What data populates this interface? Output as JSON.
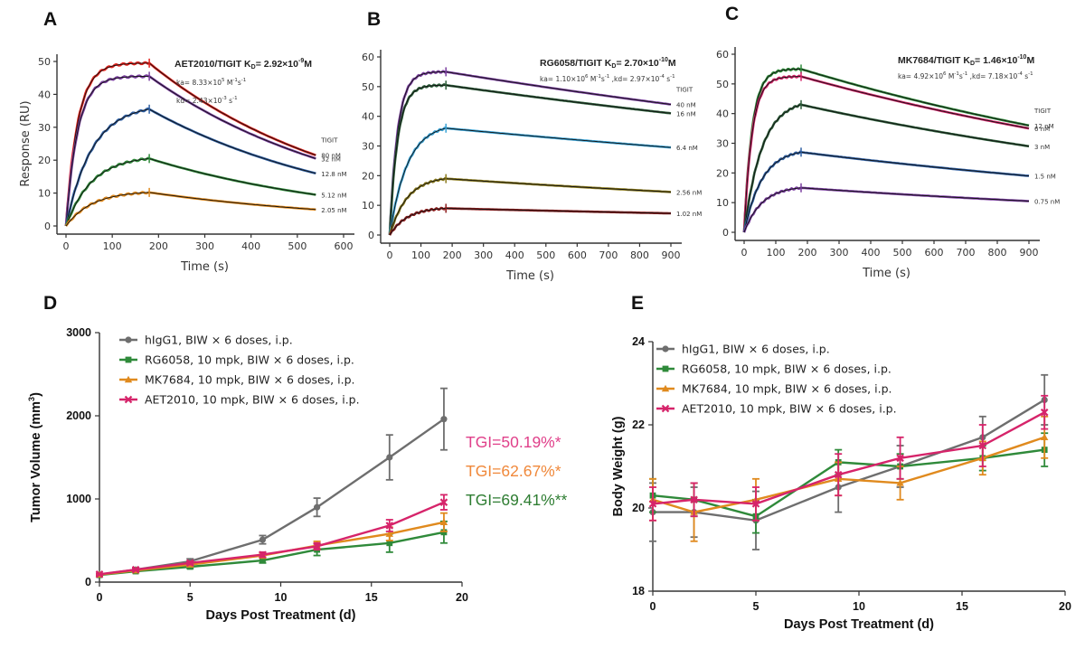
{
  "panels": {
    "A": "A",
    "B": "B",
    "C": "C",
    "D": "D",
    "E": "E"
  },
  "colors": {
    "red": "#e3221c",
    "purple": "#7b3fa0",
    "blue": "#2e5fa3",
    "green": "#2f8a3a",
    "orange": "#e08a1e",
    "darkgreen": "#2d5e3a",
    "cyan": "#3aa3d6",
    "olive": "#8a7a1c",
    "darkred": "#8e1e1e",
    "magenta": "#d6246a",
    "gray": "#6e6e6e",
    "tgi_green": "#2e7d32",
    "tgi_orange": "#f0883a",
    "tgi_pink": "#e0408a"
  },
  "chart_data": [
    {
      "type": "line",
      "panel": "A",
      "title": "AET2010/TIGIT",
      "kd_label": "K",
      "kd_sub": "D",
      "kd_value": "= 2.92×10",
      "kd_exp": "-9",
      "kd_unit": "M",
      "ka_text": "ka= 8.33×10",
      "ka_exp": "5",
      "ka_unit": " M",
      "ka_unit_exp": "-1",
      "ka_unit2": "s",
      "ka_unit2_exp": "-1",
      "kdis_text": "kd= 2.43×10",
      "kdis_exp": "-3",
      "kdis_unit": " s",
      "kdis_unit_exp": "-1",
      "analyte": "TIGIT",
      "xlabel": "Time (s)",
      "ylabel": "Response (RU)",
      "xlim": [
        -10,
        620
      ],
      "ylim": [
        -3,
        53
      ],
      "xticks": [
        "0",
        "100",
        "200",
        "300",
        "400",
        "500",
        "600"
      ],
      "yticks": [
        "0",
        "10",
        "20",
        "30",
        "40",
        "50"
      ],
      "assoc_end": 180,
      "end_time": 540,
      "series": [
        {
          "name": "80 nM",
          "color_key": "red",
          "plateau": 50,
          "at_end": 49.5,
          "rate": 0.06,
          "final": 21.5
        },
        {
          "name": "32 nM",
          "color_key": "purple",
          "plateau": 48,
          "at_end": 45.5,
          "rate": 0.016,
          "final": 20.5
        },
        {
          "name": "12.8 nM",
          "color_key": "blue",
          "plateau": 40,
          "at_end": 35.5,
          "rate": 0.012,
          "final": 16
        },
        {
          "name": "5.12 nM",
          "color_key": "green",
          "plateau": 25,
          "at_end": 20.5,
          "rate": 0.0095,
          "final": 9.5
        },
        {
          "name": "2.05 nM",
          "color_key": "orange",
          "plateau": 12,
          "at_end": 10.2,
          "rate": 0.0105,
          "final": 5
        }
      ]
    },
    {
      "type": "line",
      "panel": "B",
      "title": "RG6058/TIGIT",
      "kd_label": "K",
      "kd_sub": "D",
      "kd_value": "= 2.70×10",
      "kd_exp": "-10",
      "kd_unit": "M",
      "ka_text": "ka= 1.10×10",
      "ka_exp": "6",
      "ka_unit": " M",
      "ka_unit_exp": "-1",
      "ka_unit2": "s",
      "ka_unit2_exp": "-1",
      "kdis_text": ",kd= 2.97×10",
      "kdis_exp": "-4",
      "kdis_unit": " s",
      "kdis_unit_exp": "-1",
      "analyte": "TIGIT",
      "xlabel": "Time (s)",
      "ylabel": "",
      "xlim": [
        -10,
        950
      ],
      "ylim": [
        -2,
        62
      ],
      "xticks": [
        "0",
        "100",
        "200",
        "300",
        "400",
        "500",
        "600",
        "700",
        "800",
        "900"
      ],
      "yticks": [
        "0",
        "10",
        "20",
        "30",
        "40",
        "50",
        "60"
      ],
      "assoc_end": 180,
      "end_time": 900,
      "series": [
        {
          "name": "40 nM",
          "color_key": "purple",
          "plateau": 55,
          "at_end": 55,
          "rate": 0.05,
          "final": 44
        },
        {
          "name": "16 nM",
          "color_key": "darkgreen",
          "plateau": 52,
          "at_end": 50.5,
          "rate": 0.022,
          "final": 41
        },
        {
          "name": "6.4 nM",
          "color_key": "cyan",
          "plateau": 38,
          "at_end": 36,
          "rate": 0.016,
          "final": 29.5
        },
        {
          "name": "2.56 nM",
          "color_key": "olive",
          "plateau": 20,
          "at_end": 19,
          "rate": 0.016,
          "final": 14.5
        },
        {
          "name": "1.02 nM",
          "color_key": "darkred",
          "plateau": 10,
          "at_end": 9,
          "rate": 0.016,
          "final": 7.3
        }
      ]
    },
    {
      "type": "line",
      "panel": "C",
      "title": "MK7684/TIGIT",
      "kd_label": "K",
      "kd_sub": "D",
      "kd_value": "= 1.46×10",
      "kd_exp": "-10",
      "kd_unit": "M",
      "ka_text": "ka= 4.92×10",
      "ka_exp": "6",
      "ka_unit": " M",
      "ka_unit_exp": "-1",
      "ka_unit2": "s",
      "ka_unit2_exp": "-1",
      "kdis_text": ",kd= 7.18×10",
      "kdis_exp": "-4",
      "kdis_unit": " s",
      "kdis_unit_exp": "-1",
      "analyte": "TIGIT",
      "xlabel": "Time (s)",
      "ylabel": "",
      "xlim": [
        -10,
        950
      ],
      "ylim": [
        -2,
        62
      ],
      "xticks": [
        "0",
        "100",
        "200",
        "300",
        "400",
        "500",
        "600",
        "700",
        "800",
        "900"
      ],
      "yticks": [
        "0",
        "10",
        "20",
        "30",
        "40",
        "50",
        "60"
      ],
      "assoc_end": 180,
      "end_time": 900,
      "series": [
        {
          "name": "12 nM",
          "color_key": "green",
          "plateau": 55,
          "at_end": 55,
          "rate": 0.08,
          "final": 36
        },
        {
          "name": "6 nM",
          "color_key": "magenta",
          "plateau": 53,
          "at_end": 52.5,
          "rate": 0.04,
          "final": 35
        },
        {
          "name": "3 nM",
          "color_key": "darkgreen",
          "plateau": 45,
          "at_end": 43,
          "rate": 0.02,
          "final": 29
        },
        {
          "name": "1.5 nM",
          "color_key": "blue",
          "plateau": 28,
          "at_end": 27,
          "rate": 0.025,
          "final": 19
        },
        {
          "name": "0.75 nM",
          "color_key": "purple",
          "plateau": 15.5,
          "at_end": 15,
          "rate": 0.025,
          "final": 10.5
        }
      ]
    },
    {
      "type": "line",
      "panel": "D",
      "xlabel": "Days Post Treatment (d)",
      "ylabel": "Tumor Volume (mm",
      "ylabel_sup": "3",
      "ylabel_end": ")",
      "xlim": [
        0,
        20
      ],
      "ylim": [
        0,
        3000
      ],
      "xticks": [
        "0",
        "5",
        "10",
        "15",
        "20"
      ],
      "yticks": [
        "0",
        "1000",
        "2000",
        "3000"
      ],
      "legend": "top-left",
      "x": [
        0,
        2,
        5,
        9,
        12,
        16,
        19
      ],
      "series": [
        {
          "name": "hIgG1, BIW × 6 doses, i.p.",
          "color_key": "gray",
          "marker": "circle",
          "values": [
            90,
            150,
            250,
            510,
            900,
            1500,
            1960
          ],
          "errors": [
            15,
            20,
            30,
            50,
            110,
            270,
            370
          ]
        },
        {
          "name": "RG6058, 10 mpk, BIW × 6 doses, i.p.",
          "color_key": "green",
          "marker": "square",
          "values": [
            85,
            130,
            185,
            260,
            390,
            470,
            600
          ],
          "errors": [
            10,
            15,
            20,
            30,
            70,
            110,
            130
          ]
        },
        {
          "name": "MK7684, 10 mpk, BIW × 6 doses, i.p.",
          "color_key": "orange",
          "marker": "triangle",
          "values": [
            90,
            140,
            210,
            320,
            440,
            580,
            720
          ],
          "errors": [
            10,
            15,
            20,
            30,
            50,
            80,
            110
          ]
        },
        {
          "name": "AET2010, 10 mpk, BIW × 6 doses, i.p.",
          "color_key": "magenta",
          "marker": "cross",
          "values": [
            95,
            150,
            230,
            330,
            430,
            680,
            960
          ],
          "errors": [
            10,
            15,
            20,
            30,
            40,
            70,
            90
          ]
        }
      ],
      "annotations": [
        {
          "text": "TGI=50.19%*",
          "color_key": "tgi_pink"
        },
        {
          "text": "TGI=62.67%*",
          "color_key": "tgi_orange"
        },
        {
          "text": "TGI=69.41%**",
          "color_key": "tgi_green"
        }
      ]
    },
    {
      "type": "line",
      "panel": "E",
      "xlabel": "Days Post Treatment (d)",
      "ylabel": "Body Weight (g)",
      "xlim": [
        0,
        20
      ],
      "ylim": [
        18,
        24
      ],
      "xticks": [
        "0",
        "5",
        "10",
        "15",
        "20"
      ],
      "yticks": [
        "18",
        "20",
        "22",
        "24"
      ],
      "legend": "top-left",
      "x": [
        0,
        2,
        5,
        9,
        12,
        16,
        19
      ],
      "series": [
        {
          "name": "hIgG1, BIW × 6 doses, i.p.",
          "color_key": "gray",
          "marker": "circle",
          "values": [
            19.9,
            19.9,
            19.7,
            20.5,
            21.0,
            21.7,
            22.6
          ],
          "errors": [
            0.7,
            0.6,
            0.7,
            0.6,
            0.5,
            0.5,
            0.6
          ]
        },
        {
          "name": "RG6058, 10 mpk, BIW × 6 doses, i.p.",
          "color_key": "green",
          "marker": "square",
          "values": [
            20.3,
            20.2,
            19.8,
            21.1,
            21.0,
            21.2,
            21.4
          ],
          "errors": [
            0.4,
            0.4,
            0.4,
            0.3,
            0.3,
            0.3,
            0.4
          ]
        },
        {
          "name": "MK7684, 10 mpk, BIW × 6 doses, i.p.",
          "color_key": "orange",
          "marker": "triangle",
          "values": [
            20.2,
            19.9,
            20.2,
            20.7,
            20.6,
            21.2,
            21.7
          ],
          "errors": [
            0.5,
            0.7,
            0.5,
            0.4,
            0.4,
            0.4,
            0.5
          ]
        },
        {
          "name": "AET2010, 10 mpk, BIW × 6 doses, i.p.",
          "color_key": "magenta",
          "marker": "cross",
          "values": [
            20.1,
            20.2,
            20.1,
            20.8,
            21.2,
            21.5,
            22.3
          ],
          "errors": [
            0.4,
            0.4,
            0.4,
            0.5,
            0.5,
            0.5,
            0.4
          ]
        }
      ]
    }
  ]
}
